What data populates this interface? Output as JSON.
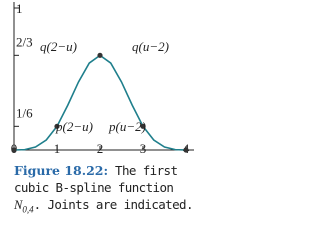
{
  "chart_data": {
    "type": "line",
    "x": [
      0,
      0.25,
      0.5,
      0.75,
      1,
      1.25,
      1.5,
      1.75,
      2,
      2.25,
      2.5,
      2.75,
      3,
      3.25,
      3.5,
      3.75,
      4
    ],
    "series": [
      {
        "color": "#1f7f8c",
        "values": [
          0,
          0.0026,
          0.0208,
          0.0703,
          0.1667,
          0.3151,
          0.4792,
          0.612,
          0.6667,
          0.612,
          0.4792,
          0.3151,
          0.1667,
          0.0703,
          0.0208,
          0.0026,
          0
        ]
      }
    ],
    "joints": {
      "x": [
        0,
        1,
        2,
        3,
        4
      ],
      "values": [
        0,
        0.1667,
        0.6667,
        0.1667,
        0
      ],
      "color": "#333333"
    },
    "xlim": [
      0,
      4
    ],
    "ylim": [
      0,
      1
    ],
    "xticks": [
      0,
      1,
      2,
      3,
      4
    ],
    "yticks": [
      {
        "value": 0.1667,
        "label": "1/6"
      },
      {
        "value": 0.6667,
        "label": "2/3"
      },
      1
    ],
    "annotations": [
      "q(2−u)",
      "q(u−2)",
      "p(2−u)",
      "p(u−2)"
    ],
    "caption": {
      "label": "Figure 18.22:",
      "text": "The first cubic B-spline function",
      "symbol": "N",
      "subscript": "0,4",
      "text_after": ". Joints are indicated."
    }
  }
}
